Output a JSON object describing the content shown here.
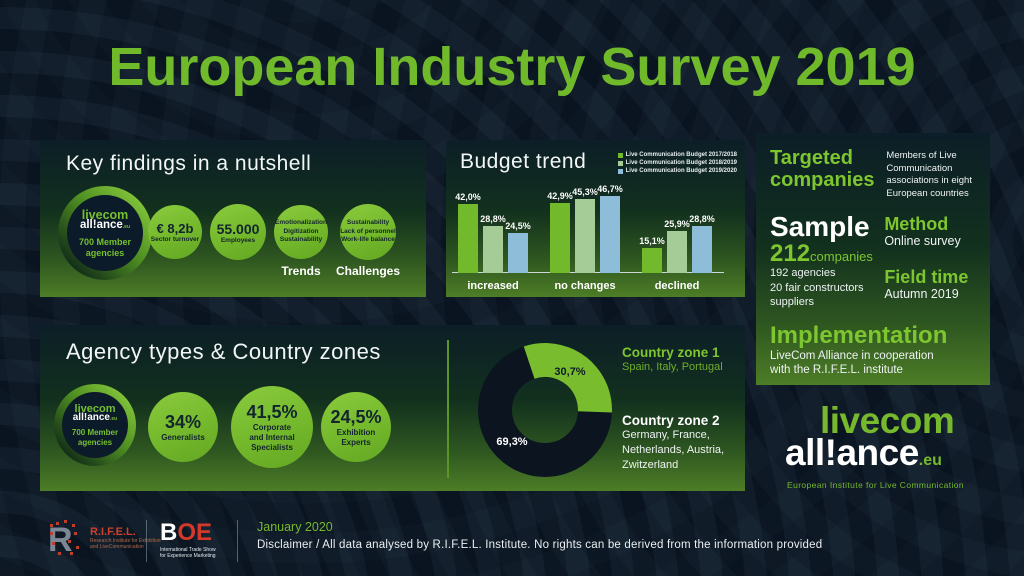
{
  "title": "European Industry Survey 2019",
  "colors": {
    "background": "#0a1420",
    "accent_green": "#76b92d",
    "sage_green": "#a5cc97",
    "light_blue": "#8dbdd8",
    "donut_dark": "#0c1420",
    "rifel_red": "#cf3f2b",
    "white": "#ffffff"
  },
  "key_findings": {
    "title": "Key findings in a nutshell",
    "stat1": {
      "value": "€ 8,2b",
      "label": "Sector turnover"
    },
    "stat2": {
      "value": "55.000",
      "label": "Employees"
    },
    "trends_circle": {
      "line1": "Emotionalization",
      "line2": "Digitization",
      "line3": "Sustainability",
      "caption": "Trends"
    },
    "challenges_circle": {
      "line1": "Sustainability",
      "line2": "Lack of personnel",
      "line3": "Work-life balance",
      "caption": "Challenges"
    }
  },
  "brand_small": {
    "top": "livecom",
    "bottom": "all!ance",
    "suffix": ".eu",
    "member_line1": "700 Member",
    "member_line2": "agencies"
  },
  "info": {
    "targeted_title_line1": "Targeted",
    "targeted_title_line2": "companies",
    "targeted_desc": "Members of Live Communication associations in eight European countries",
    "sample_title": "Sample",
    "sample_number": "212",
    "sample_unit": "companies",
    "sample_line1": "192 agencies",
    "sample_line2": "20 fair constructors",
    "sample_line3": "suppliers",
    "method_title": "Method",
    "method_value": "Online survey",
    "fieldtime_title": "Field time",
    "fieldtime_value": "Autumn 2019",
    "implementation_title": "Implementation",
    "implementation_line1": "LiveCom Alliance in cooperation",
    "implementation_line2": "with the R.I.F.E.L. institute"
  },
  "agency": {
    "title": "Agency types & Country zones",
    "circle1": {
      "value": "34%",
      "label": "Generalists"
    },
    "circle2": {
      "value": "41,5%",
      "label_line1": "Corporate",
      "label_line2": "and Internal",
      "label_line3": "Specialists"
    },
    "circle3": {
      "value": "24,5%",
      "label_line1": "Exhibition",
      "label_line2": "Experts"
    }
  },
  "brand_logo": {
    "line1": "livecom",
    "line2": "all!ance",
    "suffix": ".eu",
    "tagline": "European Institute for Live Communication"
  },
  "footer": {
    "rifel_name": "R.I.F.E.L.",
    "rifel_sub_line1": "Research Institute for Exhibition",
    "rifel_sub_line2": "and LiveCommunication",
    "boe_b": "B",
    "boe_o": "O",
    "boe_e": "E",
    "boe_sub_line1": "International Trade Show",
    "boe_sub_line2": "for Experience Marketing",
    "date": "January 2020",
    "disclaimer": "Disclaimer / All data analysed by R.I.F.E.L. Institute. No rights can be derived from the information provided"
  },
  "chart_data": [
    {
      "type": "bar",
      "title": "Budget trend",
      "categories": [
        "increased",
        "no changes",
        "declined"
      ],
      "series": [
        {
          "name": "Live Communication Budget 2017/2018",
          "color": "#72b92c",
          "values": [
            42.0,
            42.9,
            15.1
          ],
          "labels": [
            "42,0%",
            "42,9%",
            "15,1%"
          ]
        },
        {
          "name": "Live Communication Budget 2018/2019",
          "color": "#a5cc97",
          "values": [
            28.8,
            45.3,
            25.9
          ],
          "labels": [
            "28,8%",
            "45,3%",
            "25,9%"
          ]
        },
        {
          "name": "Live Communication Budget 2019/2020",
          "color": "#8dbdd8",
          "values": [
            24.5,
            46.7,
            28.8
          ],
          "labels": [
            "24,5%",
            "46,7%",
            "28,8%"
          ]
        }
      ],
      "ylabel": "",
      "ylim": [
        0,
        50
      ],
      "grid": false,
      "legend_position": "top-right"
    },
    {
      "type": "pie",
      "subtype": "donut",
      "start_angle_deg": -18.5,
      "slices": [
        {
          "label": "Country zone 1",
          "value": 30.7,
          "display": "30,7%",
          "color": "#79bd2e",
          "sublabel_lines": [
            "Spain, Italy, Portugal"
          ]
        },
        {
          "label": "Country zone 2",
          "value": 69.3,
          "display": "69,3%",
          "color": "#0c1420",
          "sublabel_lines": [
            "Germany, France,",
            "Netherlands, Austria,",
            "Zwitzerland"
          ]
        }
      ],
      "legend_position": "right"
    }
  ]
}
